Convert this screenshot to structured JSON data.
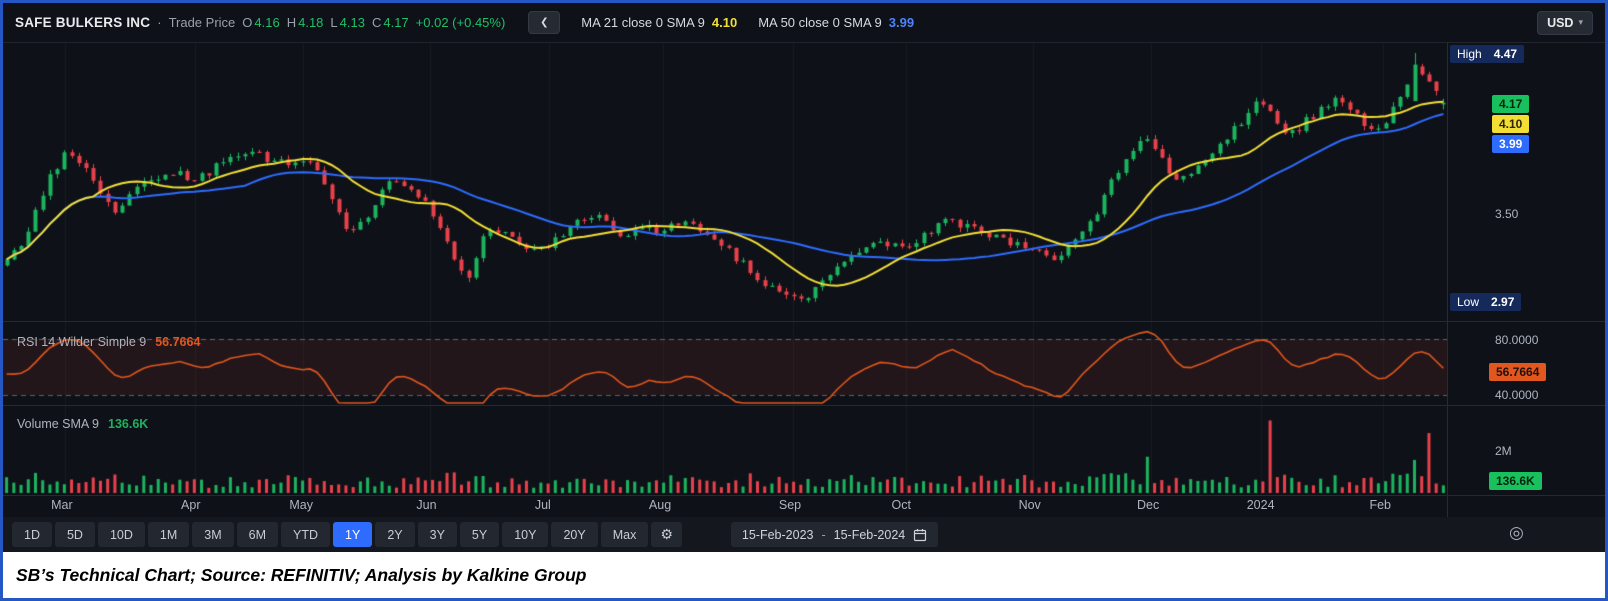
{
  "header": {
    "symbol": "SAFE BULKERS INC",
    "sep": "·",
    "series": "Trade Price",
    "ohlc": {
      "o_label": "O",
      "o": "4.16",
      "h_label": "H",
      "h": "4.18",
      "l_label": "L",
      "l": "4.13",
      "c_label": "C",
      "c": "4.17",
      "change": "+0.02 (+0.45%)"
    },
    "back_icon": "❮",
    "ma1_label": "MA 21 close 0 SMA 9",
    "ma1_value": "4.10",
    "ma2_label": "MA 50 close 0 SMA 9",
    "ma2_value": "3.99",
    "currency": "USD",
    "currency_caret": "▾"
  },
  "price_axis": {
    "high_label": "High",
    "high": "4.47",
    "last": "4.17",
    "ma_fast": "4.10",
    "ma_slow": "3.99",
    "mid": "3.50",
    "low_label": "Low",
    "low": "2.97"
  },
  "rsi_panel": {
    "label": "RSI 14 Wilder Simple 9",
    "value": "56.7664",
    "upper": "80.0000",
    "lower": "40.0000",
    "badge": "56.7664"
  },
  "volume_panel": {
    "label": "Volume SMA 9",
    "value": "136.6K",
    "scale": "2M",
    "badge": "136.6K"
  },
  "time_axis": {
    "months": [
      {
        "label": "Mar",
        "t": 0.043
      },
      {
        "label": "Apr",
        "t": 0.133
      },
      {
        "label": "May",
        "t": 0.208
      },
      {
        "label": "Jun",
        "t": 0.296
      },
      {
        "label": "Jul",
        "t": 0.378
      },
      {
        "label": "Aug",
        "t": 0.457
      },
      {
        "label": "Sep",
        "t": 0.547
      },
      {
        "label": "Oct",
        "t": 0.625
      },
      {
        "label": "Nov",
        "t": 0.713
      },
      {
        "label": "Dec",
        "t": 0.795
      },
      {
        "label": "2024",
        "t": 0.871
      },
      {
        "label": "Feb",
        "t": 0.956
      }
    ],
    "target_icon": "◎"
  },
  "toolbar": {
    "ranges": [
      "1D",
      "5D",
      "10D",
      "1M",
      "3M",
      "6M",
      "YTD",
      "1Y",
      "2Y",
      "3Y",
      "5Y",
      "10Y",
      "20Y",
      "Max"
    ],
    "selected": "1Y",
    "gear_icon": "⚙",
    "date_from": "15-Feb-2023",
    "date_dash": "-",
    "date_to": "15-Feb-2024"
  },
  "caption": "SB’s Technical Chart; Source: REFINITIV; Analysis by Kalkine Group",
  "colors": {
    "background": "#0e1218",
    "up": "#1cb35e",
    "down": "#e8414a",
    "ma_fast": "#f2de35",
    "ma_slow": "#2e6bff",
    "rsi": "#df561d",
    "selected_range": "#2e6bff",
    "badge_navy": "#16295b"
  },
  "chart_data": {
    "type": "candlestick",
    "title": "SAFE BULKERS INC - Trade Price",
    "x_range": [
      "15-Feb-2023",
      "15-Feb-2024"
    ],
    "y_axis_labels": [
      4.47,
      4.17,
      4.1,
      3.99,
      3.5,
      2.97
    ],
    "price_high": 4.47,
    "price_low": 2.97,
    "last": {
      "open": 4.16,
      "high": 4.18,
      "low": 4.13,
      "close": 4.17,
      "change": 0.02,
      "change_pct": 0.45
    },
    "anchors": [
      [
        0.0,
        3.22
      ],
      [
        0.012,
        3.34
      ],
      [
        0.03,
        3.72
      ],
      [
        0.043,
        3.88
      ],
      [
        0.055,
        3.78
      ],
      [
        0.075,
        3.52
      ],
      [
        0.095,
        3.68
      ],
      [
        0.115,
        3.74
      ],
      [
        0.133,
        3.72
      ],
      [
        0.15,
        3.8
      ],
      [
        0.168,
        3.9
      ],
      [
        0.185,
        3.82
      ],
      [
        0.2,
        3.78
      ],
      [
        0.208,
        3.82
      ],
      [
        0.222,
        3.68
      ],
      [
        0.238,
        3.4
      ],
      [
        0.252,
        3.5
      ],
      [
        0.268,
        3.74
      ],
      [
        0.282,
        3.66
      ],
      [
        0.296,
        3.52
      ],
      [
        0.31,
        3.24
      ],
      [
        0.322,
        3.12
      ],
      [
        0.334,
        3.44
      ],
      [
        0.35,
        3.36
      ],
      [
        0.364,
        3.26
      ],
      [
        0.378,
        3.32
      ],
      [
        0.395,
        3.44
      ],
      [
        0.412,
        3.47
      ],
      [
        0.43,
        3.36
      ],
      [
        0.445,
        3.42
      ],
      [
        0.457,
        3.4
      ],
      [
        0.472,
        3.46
      ],
      [
        0.49,
        3.36
      ],
      [
        0.51,
        3.22
      ],
      [
        0.53,
        3.06
      ],
      [
        0.547,
        2.99
      ],
      [
        0.558,
        2.99
      ],
      [
        0.572,
        3.14
      ],
      [
        0.59,
        3.26
      ],
      [
        0.608,
        3.33
      ],
      [
        0.625,
        3.3
      ],
      [
        0.64,
        3.38
      ],
      [
        0.655,
        3.46
      ],
      [
        0.67,
        3.42
      ],
      [
        0.688,
        3.35
      ],
      [
        0.705,
        3.3
      ],
      [
        0.713,
        3.28
      ],
      [
        0.728,
        3.24
      ],
      [
        0.74,
        3.3
      ],
      [
        0.752,
        3.42
      ],
      [
        0.765,
        3.62
      ],
      [
        0.778,
        3.84
      ],
      [
        0.79,
        3.97
      ],
      [
        0.8,
        3.88
      ],
      [
        0.812,
        3.68
      ],
      [
        0.822,
        3.72
      ],
      [
        0.835,
        3.84
      ],
      [
        0.85,
        3.98
      ],
      [
        0.862,
        4.08
      ],
      [
        0.873,
        4.2
      ],
      [
        0.883,
        4.04
      ],
      [
        0.895,
        3.99
      ],
      [
        0.91,
        4.1
      ],
      [
        0.925,
        4.18
      ],
      [
        0.94,
        4.08
      ],
      [
        0.952,
        3.99
      ],
      [
        0.966,
        4.14
      ],
      [
        0.98,
        4.38
      ],
      [
        0.99,
        4.28
      ],
      [
        1.0,
        4.17
      ]
    ],
    "overlays": [
      {
        "name": "MA 21 close 0 SMA 9",
        "last": 4.1
      },
      {
        "name": "MA 50 close 0 SMA 9",
        "last": 3.99
      }
    ],
    "rsi": {
      "period": 14,
      "type": "Wilder",
      "smoothing": 9,
      "last": 56.7664,
      "guides": [
        80,
        40
      ]
    },
    "volume": {
      "sma_period": 9,
      "sma_last": 136600,
      "scale_max": 2000000,
      "spikes": [
        {
          "t": 0.795,
          "v": 1150000
        },
        {
          "t": 0.881,
          "v": 2300000
        },
        {
          "t": 0.988,
          "v": 1900000
        }
      ]
    }
  }
}
